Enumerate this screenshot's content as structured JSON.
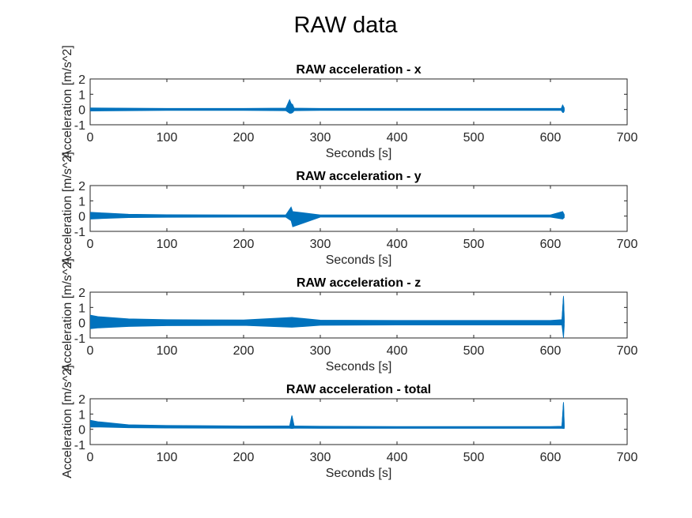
{
  "figure": {
    "suptitle": "RAW data"
  },
  "colors": {
    "series": "#0072BD",
    "axis": "#262626",
    "background": "#ffffff"
  },
  "chart_data": [
    {
      "type": "line",
      "title": "RAW acceleration - x",
      "xlabel": "Seconds [s]",
      "ylabel": "Acceleration [m/s^2]",
      "xlim": [
        0,
        700
      ],
      "ylim": [
        -1,
        2
      ],
      "xticks": [
        0,
        100,
        200,
        300,
        400,
        500,
        600,
        700
      ],
      "yticks": [
        -1,
        0,
        1,
        2
      ],
      "grid": false,
      "series": [
        {
          "x": [
            0,
            100,
            200,
            255,
            260,
            262,
            264,
            266,
            300,
            400,
            500,
            600,
            614,
            616,
            617,
            618
          ],
          "y": [
            0.02,
            0.02,
            0.02,
            0.03,
            0.6,
            -0.2,
            0.3,
            0.02,
            0.02,
            0.02,
            0.02,
            0.02,
            0.02,
            0.3,
            -0.2,
            0.02
          ],
          "envelope_min": [
            -0.1,
            -0.06,
            -0.06,
            -0.08,
            -0.25,
            -0.25,
            -0.2,
            -0.08,
            -0.06,
            -0.06,
            -0.06,
            -0.06,
            -0.06,
            -0.2,
            -0.2,
            -0.1
          ],
          "envelope_max": [
            0.1,
            0.07,
            0.07,
            0.09,
            0.65,
            0.4,
            0.3,
            0.09,
            0.07,
            0.07,
            0.07,
            0.07,
            0.07,
            0.3,
            0.2,
            0.1
          ]
        }
      ]
    },
    {
      "type": "line",
      "title": "RAW acceleration - y",
      "xlabel": "Seconds [s]",
      "ylabel": "Acceleration [m/s^2]",
      "xlim": [
        0,
        700
      ],
      "ylim": [
        -1,
        2
      ],
      "xticks": [
        0,
        100,
        200,
        300,
        400,
        500,
        600,
        700
      ],
      "yticks": [
        -1,
        0,
        1,
        2
      ],
      "grid": false,
      "series": [
        {
          "x": [
            0,
            20,
            50,
            100,
            200,
            255,
            262,
            264,
            300,
            400,
            500,
            600,
            616,
            618
          ],
          "y": [
            0.05,
            0.05,
            0.03,
            0.02,
            0.02,
            0.02,
            0.5,
            -0.6,
            0.02,
            0.02,
            0.02,
            0.02,
            0.2,
            0.02
          ],
          "envelope_min": [
            -0.2,
            -0.15,
            -0.1,
            -0.08,
            -0.07,
            -0.07,
            -0.3,
            -0.7,
            -0.07,
            -0.07,
            -0.07,
            -0.07,
            -0.2,
            -0.1
          ],
          "envelope_max": [
            0.25,
            0.2,
            0.12,
            0.09,
            0.08,
            0.08,
            0.6,
            0.3,
            0.08,
            0.08,
            0.08,
            0.08,
            0.3,
            0.1
          ]
        }
      ]
    },
    {
      "type": "line",
      "title": "RAW acceleration - z",
      "xlabel": "Seconds [s]",
      "ylabel": "Acceleration [m/s^2]",
      "xlim": [
        0,
        700
      ],
      "ylim": [
        -1,
        2
      ],
      "xticks": [
        0,
        100,
        200,
        300,
        400,
        500,
        600,
        700
      ],
      "yticks": [
        -1,
        0,
        1,
        2
      ],
      "grid": false,
      "series": [
        {
          "x": [
            0,
            10,
            50,
            100,
            200,
            263,
            300,
            400,
            500,
            600,
            615,
            617,
            618
          ],
          "y": [
            0.0,
            0.0,
            0.0,
            0.0,
            0.0,
            0.0,
            0.0,
            0.0,
            0.0,
            0.0,
            0.0,
            1.7,
            0.0
          ],
          "envelope_min": [
            -0.4,
            -0.35,
            -0.25,
            -0.2,
            -0.18,
            -0.3,
            -0.17,
            -0.15,
            -0.15,
            -0.15,
            -0.15,
            -1.0,
            -0.2
          ],
          "envelope_max": [
            0.5,
            0.4,
            0.25,
            0.2,
            0.18,
            0.35,
            0.17,
            0.15,
            0.15,
            0.15,
            0.2,
            1.75,
            0.2
          ]
        }
      ]
    },
    {
      "type": "line",
      "title": "RAW acceleration - total",
      "xlabel": "Seconds [s]",
      "ylabel": "Acceleration [m/s^2]",
      "xlim": [
        0,
        700
      ],
      "ylim": [
        -1,
        2
      ],
      "xticks": [
        0,
        100,
        200,
        300,
        400,
        500,
        600,
        700
      ],
      "yticks": [
        -1,
        0,
        1,
        2
      ],
      "grid": false,
      "series": [
        {
          "x": [
            0,
            10,
            50,
            100,
            200,
            260,
            263,
            266,
            300,
            400,
            500,
            600,
            615,
            617,
            618
          ],
          "y": [
            0.35,
            0.3,
            0.2,
            0.17,
            0.15,
            0.15,
            0.9,
            0.15,
            0.13,
            0.12,
            0.12,
            0.12,
            0.12,
            1.75,
            0.12
          ],
          "envelope_min": [
            0.15,
            0.15,
            0.1,
            0.08,
            0.07,
            0.07,
            0.05,
            0.07,
            0.06,
            0.06,
            0.06,
            0.06,
            0.06,
            0.05,
            0.06
          ],
          "envelope_max": [
            0.6,
            0.5,
            0.3,
            0.25,
            0.22,
            0.22,
            0.9,
            0.22,
            0.2,
            0.18,
            0.18,
            0.18,
            0.2,
            1.78,
            0.2
          ]
        }
      ]
    }
  ]
}
